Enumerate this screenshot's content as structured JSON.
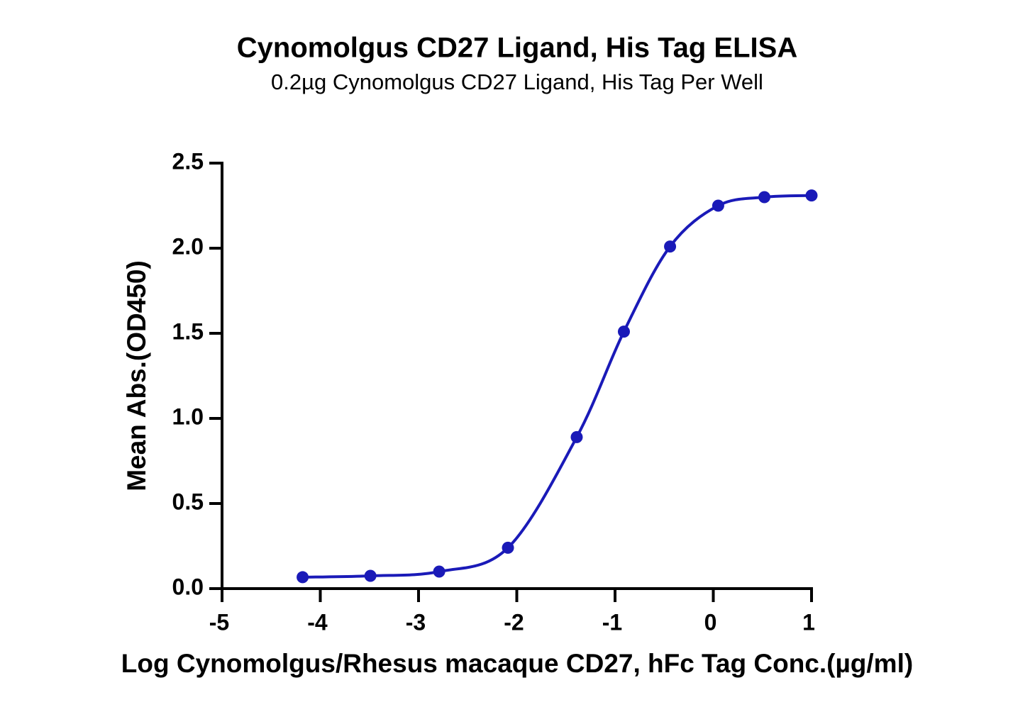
{
  "chart_data": {
    "type": "line",
    "title": "Cynomolgus CD27 Ligand, His Tag ELISA",
    "subtitle": "0.2µg Cynomolgus CD27 Ligand, His Tag Per Well",
    "x_label": "Log Cynomolgus/Rhesus macaque CD27, hFc Tag Conc.(µg/ml)",
    "y_label": "Mean Abs.(OD450)",
    "x": [
      -4.18,
      -3.49,
      -2.79,
      -2.09,
      -1.39,
      -0.91,
      -0.44,
      0.05,
      0.52,
      1.0
    ],
    "series": [
      {
        "color": "#1a1ab8",
        "values": [
          0.067,
          0.075,
          0.1,
          0.24,
          0.89,
          1.51,
          2.01,
          2.25,
          2.3,
          2.31
        ]
      }
    ],
    "markers": true,
    "smooth": true,
    "xlim": [
      -5,
      1
    ],
    "xticks": [
      -5,
      -4,
      -3,
      -2,
      -1,
      0,
      1
    ],
    "ylim": [
      0,
      2.5
    ],
    "yticks": [
      {
        "value": 0,
        "label": "0.0"
      },
      0.5,
      {
        "value": 1,
        "label": "1.0"
      },
      1.5,
      {
        "value": 2,
        "label": "2.0"
      },
      2.5
    ]
  }
}
